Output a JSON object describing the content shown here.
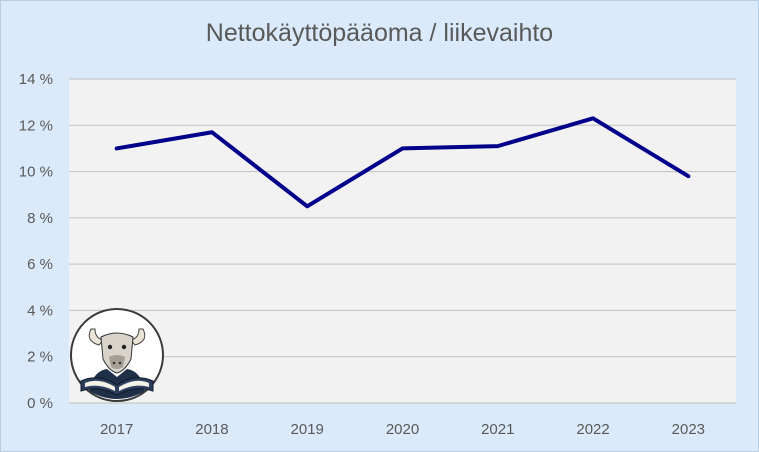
{
  "chart_data": {
    "type": "line",
    "title": "Nettokäyttöpääoma / liikevaihto",
    "xlabel": "",
    "ylabel": "",
    "categories": [
      "2017",
      "2018",
      "2019",
      "2020",
      "2021",
      "2022",
      "2023"
    ],
    "series": [
      {
        "values": [
          11.0,
          11.7,
          8.5,
          11.0,
          11.1,
          12.3,
          9.8
        ],
        "color": "#00008b"
      }
    ],
    "ylim": [
      0,
      14
    ],
    "yticks": [
      0,
      2,
      4,
      6,
      8,
      10,
      12,
      14
    ],
    "ytick_labels": [
      "0 %",
      "2 %",
      "4 %",
      "6 %",
      "8 %",
      "10 %",
      "12 %",
      "14 %"
    ],
    "grid": true,
    "legend": "none",
    "plot_background": "#f2f2f2",
    "background": "#dbeafb"
  },
  "logo": {
    "icon": "bull-reading-book-logo"
  }
}
